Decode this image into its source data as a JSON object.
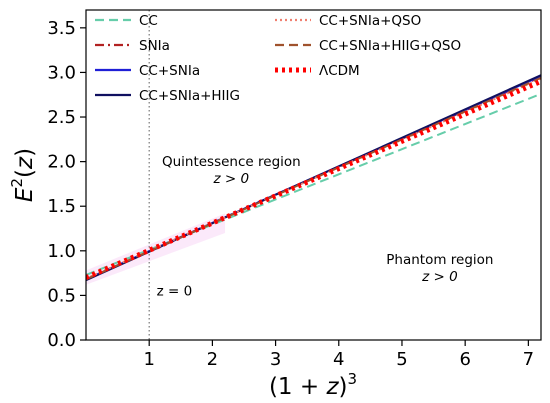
{
  "chart_data": {
    "type": "line",
    "xlabel": "(1 + z)^3",
    "ylabel": "E^2(z)",
    "xlim": [
      0.0,
      7.2
    ],
    "ylim": [
      0.0,
      3.7
    ],
    "xticks": [
      1,
      2,
      3,
      4,
      5,
      6,
      7
    ],
    "yticks": [
      0.0,
      0.5,
      1.0,
      1.5,
      2.0,
      2.5,
      3.0,
      3.5
    ],
    "grid": false,
    "legend_position": "top-left",
    "series": [
      {
        "name": "CC",
        "color": "#66cdaa",
        "dash": "dashed",
        "x": [
          0.0,
          7.2
        ],
        "y": [
          0.73,
          2.76
        ]
      },
      {
        "name": "SNIa",
        "color": "#b22222",
        "dash": "dashdot",
        "x": [
          0.0,
          7.2
        ],
        "y": [
          0.68,
          2.95
        ]
      },
      {
        "name": "CC+SNIa",
        "color": "#1f1fd6",
        "dash": "solid",
        "x": [
          0.0,
          7.2
        ],
        "y": [
          0.68,
          2.96
        ]
      },
      {
        "name": "CC+SNIa+HIIG",
        "color": "#101060",
        "dash": "solid",
        "x": [
          0.0,
          7.2
        ],
        "y": [
          0.67,
          2.97
        ]
      },
      {
        "name": "CC+SNIa+QSO",
        "color": "#f08070",
        "dash": "dotted",
        "x": [
          0.0,
          7.2
        ],
        "y": [
          0.69,
          2.93
        ]
      },
      {
        "name": "CC+SNIa+HIIG+QSO",
        "color": "#a0522d",
        "dash": "dashed",
        "x": [
          0.0,
          7.2
        ],
        "y": [
          0.68,
          2.94
        ]
      },
      {
        "name": "ΛCDM",
        "color": "#ff0000",
        "dash": "thickdotted",
        "x": [
          0.0,
          7.2
        ],
        "y": [
          0.7,
          2.9
        ]
      }
    ],
    "vline": {
      "x": 1.0,
      "style": "dotted",
      "color": "#777777"
    },
    "annotations": [
      {
        "line1": "Quintessence region",
        "line2": "z > 0",
        "x": 2.3,
        "y": 1.95
      },
      {
        "line1": "Phantom region",
        "line2": "z > 0",
        "x": 5.6,
        "y": 0.85
      },
      {
        "line1": "z = 0",
        "line2": "",
        "x": 1.4,
        "y": 0.5
      }
    ]
  }
}
